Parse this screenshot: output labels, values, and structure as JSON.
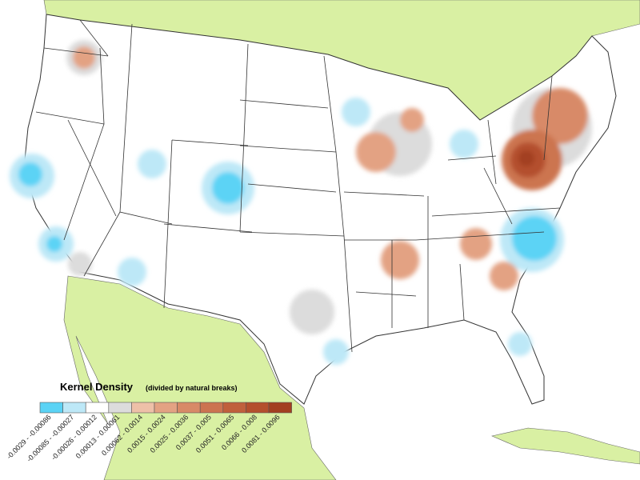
{
  "legend": {
    "title": "Kernel Density",
    "subtitle": "(divided by natural breaks)",
    "classes": [
      {
        "label": "-0.0029 - -0.00086",
        "color": "#5bd3f5"
      },
      {
        "label": "-0.00085 - -0.00027",
        "color": "#bde8f7"
      },
      {
        "label": "-0.00026 - 0.00012",
        "color": "#ffffff"
      },
      {
        "label": "0.00013 - 0.00061",
        "color": "#dcdcdc"
      },
      {
        "label": "0.00062 - 0.0014",
        "color": "#eec0a8"
      },
      {
        "label": "0.0015 - 0.0024",
        "color": "#e3a283"
      },
      {
        "label": "0.0025 - 0.0036",
        "color": "#d88a67"
      },
      {
        "label": "0.0037 - 0.005",
        "color": "#cc7450"
      },
      {
        "label": "0.0051 - 0.0065",
        "color": "#c0603c"
      },
      {
        "label": "0.0066 - 0.008",
        "color": "#b44f2d"
      },
      {
        "label": "0.0081 - 0.0096",
        "color": "#a33f20"
      }
    ]
  }
}
